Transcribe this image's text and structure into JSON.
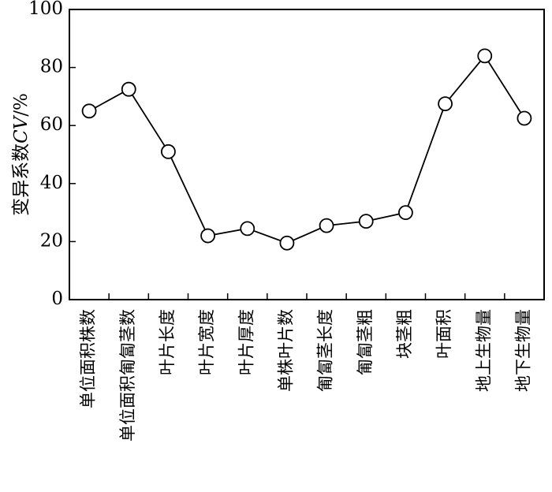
{
  "chart_data": {
    "type": "line",
    "title": "",
    "xlabel": "",
    "ylabel_prefix": "变异系数",
    "ylabel_italic": "CV",
    "ylabel_suffix": "/%",
    "ylim": [
      0,
      100
    ],
    "yticks": [
      "0",
      "20",
      "40",
      "60",
      "80",
      "100"
    ],
    "grid": false,
    "legend": "none",
    "marker": "open-circle",
    "line_color": "#000000",
    "categories": [
      "单位面积株数",
      "单位面积匍匐茎数",
      "叶片长度",
      "叶片宽度",
      "叶片厚度",
      "单株叶片数",
      "匍匐茎长度",
      "匍匐茎粗",
      "块茎粗",
      "叶面积",
      "地上生物量",
      "地下生物量"
    ],
    "values": [
      65,
      72.5,
      51,
      22,
      24.5,
      19.5,
      25.5,
      27,
      30,
      67.5,
      84,
      62.5
    ]
  }
}
